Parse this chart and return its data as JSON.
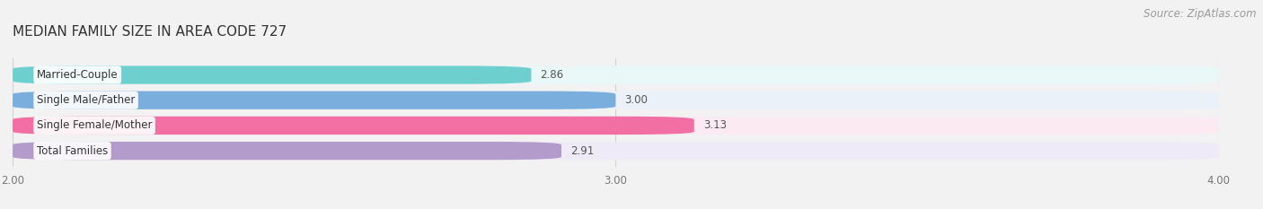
{
  "title": "MEDIAN FAMILY SIZE IN AREA CODE 727",
  "source": "Source: ZipAtlas.com",
  "categories": [
    "Married-Couple",
    "Single Male/Father",
    "Single Female/Mother",
    "Total Families"
  ],
  "values": [
    2.86,
    3.0,
    3.13,
    2.91
  ],
  "bar_colors": [
    "#6ecfcf",
    "#7aaedd",
    "#f16fa2",
    "#b39ccc"
  ],
  "bar_bg_colors": [
    "#eaf7f7",
    "#eaf1f9",
    "#fceaf3",
    "#eeeaf7"
  ],
  "xlim": [
    2.0,
    4.0
  ],
  "xticks": [
    2.0,
    3.0,
    4.0
  ],
  "xtick_labels": [
    "2.00",
    "3.00",
    "4.00"
  ],
  "background_color": "#f2f2f2",
  "title_fontsize": 11,
  "label_fontsize": 8.5,
  "value_fontsize": 8.5,
  "source_fontsize": 8.5
}
